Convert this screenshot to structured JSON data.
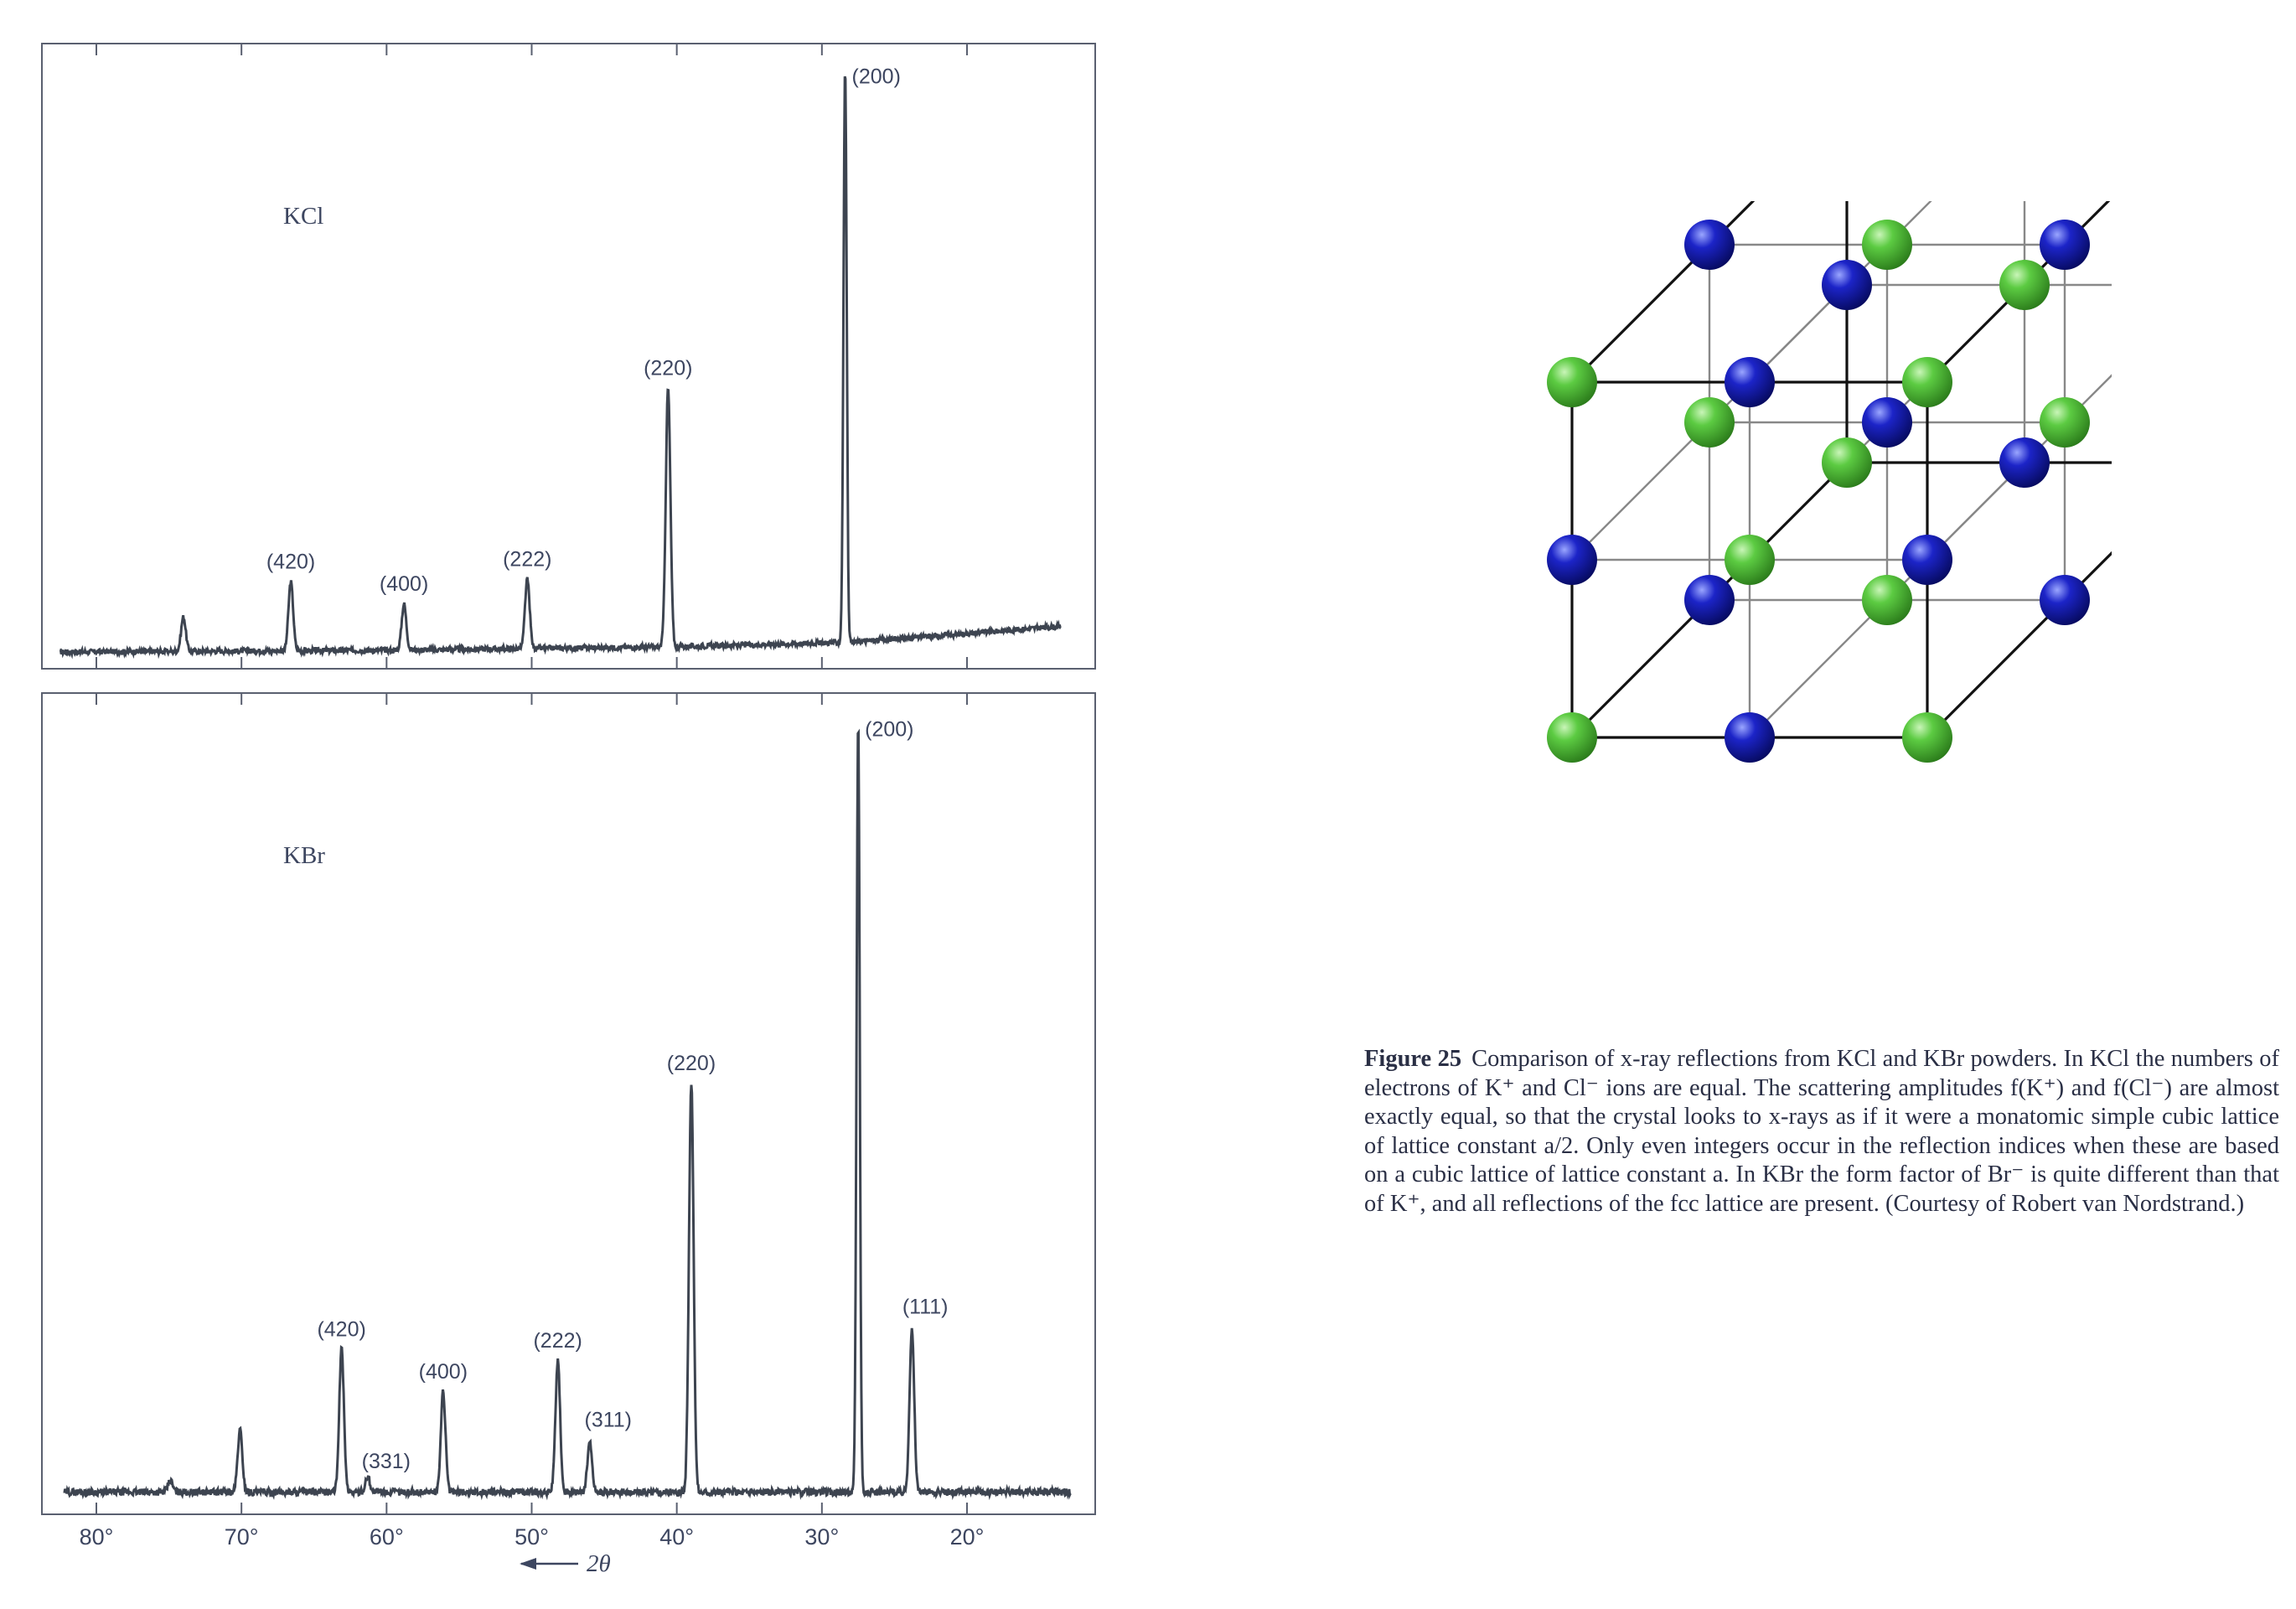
{
  "chart_data": [
    {
      "type": "line",
      "title": "",
      "label": "KCl",
      "xlabel": "2θ",
      "ylabel": "",
      "x_direction": "decreasing left-to-right",
      "xlim": [
        84,
        12
      ],
      "ylim": [
        0,
        100
      ],
      "peaks": [
        {
          "two_theta": 28.4,
          "height": 100,
          "label": "(200)"
        },
        {
          "two_theta": 40.6,
          "height": 45,
          "label": "(220)"
        },
        {
          "two_theta": 50.3,
          "height": 12,
          "label": "(222)"
        },
        {
          "two_theta": 58.8,
          "height": 8,
          "label": "(400)"
        },
        {
          "two_theta": 66.6,
          "height": 12,
          "label": "(420)"
        },
        {
          "two_theta": 74.0,
          "height": 6,
          "label": ""
        }
      ],
      "baseline": [
        {
          "x": 82.5,
          "y": 0.3
        },
        {
          "x": 60,
          "y": 0.6
        },
        {
          "x": 40,
          "y": 1.2
        },
        {
          "x": 28,
          "y": 2.0
        },
        {
          "x": 20,
          "y": 3.5
        },
        {
          "x": 14,
          "y": 4.7
        }
      ]
    },
    {
      "type": "line",
      "title": "",
      "label": "KBr",
      "xlabel": "2θ",
      "ylabel": "",
      "x_direction": "decreasing left-to-right",
      "xlim": [
        84,
        12
      ],
      "ylim": [
        0,
        100
      ],
      "peaks": [
        {
          "two_theta": 23.8,
          "height": 21,
          "label": "(111)"
        },
        {
          "two_theta": 27.5,
          "height": 100,
          "label": "(200)"
        },
        {
          "two_theta": 39.0,
          "height": 53,
          "label": "(220)"
        },
        {
          "two_theta": 46.0,
          "height": 6.5,
          "label": "(311)"
        },
        {
          "two_theta": 48.2,
          "height": 17,
          "label": "(222)"
        },
        {
          "two_theta": 56.1,
          "height": 13,
          "label": "(400)"
        },
        {
          "two_theta": 61.3,
          "height": 2,
          "label": "(331)"
        },
        {
          "two_theta": 63.1,
          "height": 18.5,
          "label": "(420)"
        },
        {
          "two_theta": 70.1,
          "height": 8,
          "label": ""
        },
        {
          "two_theta": 74.9,
          "height": 1.5,
          "label": ""
        }
      ],
      "x_ticks": [
        "80°",
        "70°",
        "60°",
        "50°",
        "40°",
        "30°",
        "20°"
      ],
      "x_tick_values": [
        80,
        70,
        60,
        50,
        40,
        30,
        20
      ],
      "axis_caption": "2θ",
      "axis_arrow": "left"
    }
  ],
  "lattice": {
    "colors": {
      "green": "#4fbf3a",
      "blue": "#1b22b0"
    }
  },
  "caption": {
    "figure_number": "Figure 25",
    "text": "Comparison of x-ray reflections from KCl and KBr powders. In KCl the numbers of electrons of K⁺ and Cl⁻ ions are equal. The scattering amplitudes f(K⁺) and f(Cl⁻) are almost exactly equal, so that the crystal looks to x-rays as if it were a monatomic simple cubic lattice of lattice constant a/2. Only even integers occur in the reflection indices when these are based on a cubic lattice of lattice constant a. In KBr the form factor of Br⁻ is quite different than that of K⁺, and all reflections of the fcc lattice are present. (Courtesy of Robert van Nordstrand.)"
  }
}
